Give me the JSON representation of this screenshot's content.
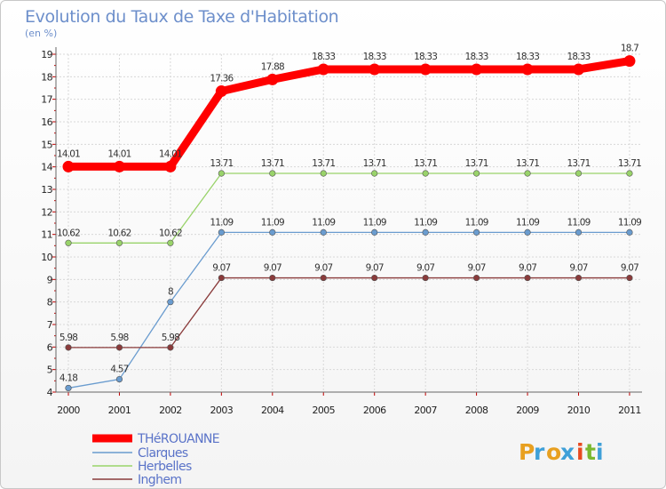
{
  "chart_data": {
    "type": "line",
    "title": "Evolution du Taux de Taxe d'Habitation",
    "subtitle": "(en %)",
    "x": [
      "2000",
      "2001",
      "2002",
      "2003",
      "2004",
      "2005",
      "2006",
      "2007",
      "2008",
      "2009",
      "2010",
      "2011"
    ],
    "ylim": [
      4,
      19
    ],
    "yticks": [
      4,
      5,
      6,
      7,
      8,
      9,
      10,
      11,
      12,
      13,
      14,
      15,
      16,
      17,
      18,
      19
    ],
    "grid": true,
    "legend_position": "bottom-left",
    "series": [
      {
        "name": "THéROUANNE",
        "color": "#ff0000",
        "values": [
          14.01,
          14.01,
          14.01,
          17.36,
          17.88,
          18.33,
          18.33,
          18.33,
          18.33,
          18.33,
          18.33,
          18.7
        ],
        "labels": [
          "14.01",
          "14.01",
          "14.01",
          "17.36",
          "17.88",
          "18.33",
          "18.33",
          "18.33",
          "18.33",
          "18.33",
          "18.33",
          "18.7"
        ]
      },
      {
        "name": "Clarques",
        "color": "#6a9ccf",
        "values": [
          4.18,
          4.57,
          8,
          11.09,
          11.09,
          11.09,
          11.09,
          11.09,
          11.09,
          11.09,
          11.09,
          11.09
        ],
        "labels": [
          "4.18",
          "4.57",
          "8",
          "11.09",
          "11.09",
          "11.09",
          "11.09",
          "11.09",
          "11.09",
          "11.09",
          "11.09",
          "11.09"
        ]
      },
      {
        "name": "Herbelles",
        "color": "#99d36a",
        "values": [
          10.62,
          10.62,
          10.62,
          13.71,
          13.71,
          13.71,
          13.71,
          13.71,
          13.71,
          13.71,
          13.71,
          13.71
        ],
        "labels": [
          "10.62",
          "10.62",
          "10.62",
          "13.71",
          "13.71",
          "13.71",
          "13.71",
          "13.71",
          "13.71",
          "13.71",
          "13.71",
          "13.71"
        ]
      },
      {
        "name": "Inghem",
        "color": "#8a3b3b",
        "values": [
          5.98,
          5.98,
          5.98,
          9.07,
          9.07,
          9.07,
          9.07,
          9.07,
          9.07,
          9.07,
          9.07,
          9.07
        ],
        "labels": [
          "5.98",
          "5.98",
          "5.98",
          "9.07",
          "9.07",
          "9.07",
          "9.07",
          "9.07",
          "9.07",
          "9.07",
          "9.07",
          "9.07"
        ]
      }
    ]
  },
  "branding": {
    "logo_letters": [
      "P",
      "r",
      "o",
      "x",
      "i",
      "t",
      "i"
    ],
    "logo_colors": [
      "#e8a020",
      "#3fa0d8",
      "#e8a020",
      "#3fa0d8",
      "#e84a20",
      "#7ab830",
      "#3fa0d8"
    ]
  }
}
